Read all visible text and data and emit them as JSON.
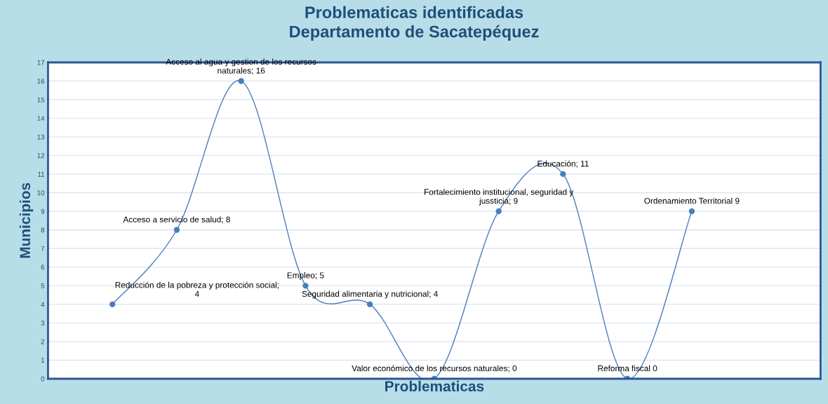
{
  "chart_data": {
    "type": "line",
    "title": "Problematicas identificadas\nDepartamento de Sacatepéquez",
    "xlabel": "Problematicas",
    "ylabel": "Municipios",
    "categories": [
      null,
      null,
      null,
      null,
      null,
      null,
      null,
      null,
      null,
      null
    ],
    "series": [
      {
        "color": "#4a7ebb",
        "values": [
          4,
          8,
          16,
          5,
          4,
          0,
          9,
          11,
          0,
          9
        ],
        "value_labels": [
          "Reducción de la pobreza y protección social;\n4",
          "Acceso a servicio de salud; 8",
          "Acceso al agua y gestion de los recursos\nnaturales; 16",
          "Empleo; 5",
          "Seguridad alimentaria y nutricional; 4",
          "Valor económico de los recursos naturales; 0",
          "Fortalecimiento institucional, seguridad y\njussticia; 9",
          "Educación; 11",
          "Reforma fiscal 0",
          "Ordenamiento Territorial 9"
        ]
      }
    ],
    "ylim": [
      0,
      17
    ],
    "yticks": [
      0,
      1,
      2,
      3,
      4,
      5,
      6,
      7,
      8,
      9,
      10,
      11,
      12,
      13,
      14,
      15,
      16,
      17
    ],
    "grid": "y",
    "marker": "circle",
    "line_style": "solid",
    "tick_labels": "y",
    "legend": false
  }
}
